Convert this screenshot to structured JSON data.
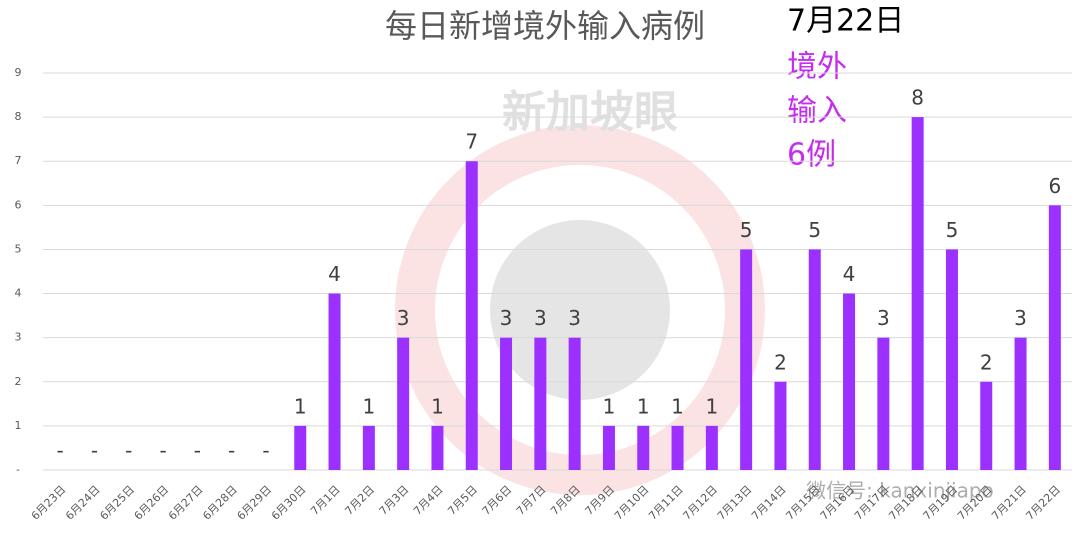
{
  "chart_data": {
    "type": "bar",
    "title": "每日新增境外输入病例",
    "annotations": [
      "7月22日",
      "境外",
      "输入",
      "6例"
    ],
    "watermarks": [
      "新加坡眼",
      "微信号: kanxinjiapo"
    ],
    "categories": [
      "6月23日",
      "6月24日",
      "6月25日",
      "6月26日",
      "6月27日",
      "6月28日",
      "6月29日",
      "6月30日",
      "7月1日",
      "7月2日",
      "7月3日",
      "7月4日",
      "7月5日",
      "7月6日",
      "7月7日",
      "7月8日",
      "7月9日",
      "7月10日",
      "7月11日",
      "7月12日",
      "7月13日",
      "7月14日",
      "7月15日",
      "7月16日",
      "7月17日",
      "7月18日",
      "7月19日",
      "7月20日",
      "7月21日",
      "7月22日"
    ],
    "values": [
      0,
      0,
      0,
      0,
      0,
      0,
      0,
      1,
      4,
      1,
      3,
      1,
      7,
      3,
      3,
      3,
      1,
      1,
      1,
      1,
      5,
      2,
      5,
      4,
      3,
      8,
      5,
      2,
      3,
      6
    ],
    "value_labels": [
      "-",
      "-",
      "-",
      "-",
      "-",
      "-",
      "-",
      null,
      null,
      null,
      null,
      null,
      null,
      null,
      null,
      null,
      null,
      null,
      null,
      null,
      null,
      null,
      null,
      null,
      null,
      null,
      null,
      null,
      null,
      null
    ],
    "color": "#9b30ff",
    "ylim": [
      0,
      9
    ],
    "yticks": [
      {
        "value": 0,
        "label": "-"
      },
      1,
      2,
      3,
      4,
      5,
      6,
      7,
      8,
      9
    ],
    "grid": true
  }
}
